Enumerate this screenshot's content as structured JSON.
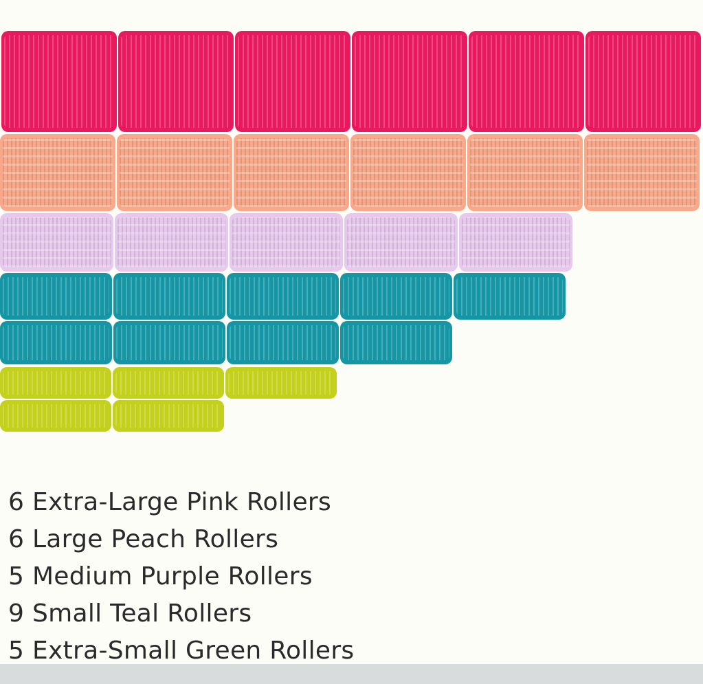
{
  "rollers": [
    {
      "label": "6 Extra-Large Pink Rollers",
      "count": 6,
      "color": "#e8195f",
      "rows": [
        6
      ]
    },
    {
      "label": "6 Large Peach Rollers",
      "count": 6,
      "color": "#f9a98a",
      "rows": [
        6
      ]
    },
    {
      "label": "5 Medium Purple Rollers",
      "count": 5,
      "color": "#e8c9ee",
      "rows": [
        5
      ]
    },
    {
      "label": "9 Small Teal Rollers",
      "count": 9,
      "color": "#1596a4",
      "rows": [
        5,
        4
      ]
    },
    {
      "label": "5 Extra-Small Green Rollers",
      "count": 5,
      "color": "#c3d01c",
      "rows": [
        3,
        2
      ]
    }
  ]
}
